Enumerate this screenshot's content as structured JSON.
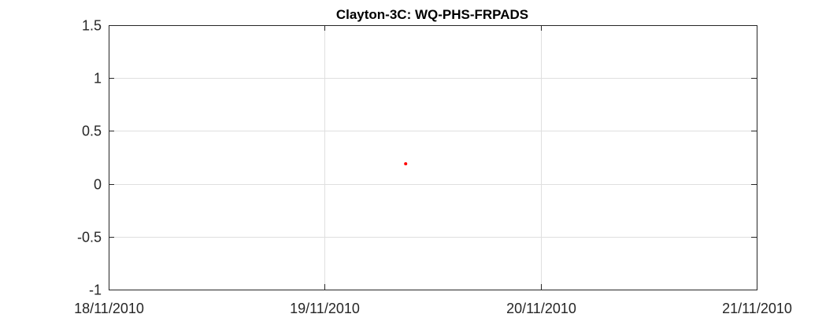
{
  "chart_data": {
    "type": "scatter",
    "title": "Clayton-3C: WQ-PHS-FRPADS",
    "xlabel": "",
    "ylabel": "",
    "x_axis_type": "date",
    "xlim": [
      "2010-11-18",
      "2010-11-21"
    ],
    "ylim": [
      -1,
      1.5
    ],
    "x_ticks": [
      {
        "value": "2010-11-18",
        "label": "18/11/2010"
      },
      {
        "value": "2010-11-19",
        "label": "19/11/2010"
      },
      {
        "value": "2010-11-20",
        "label": "20/11/2010"
      },
      {
        "value": "2010-11-21",
        "label": "21/11/2010"
      }
    ],
    "y_ticks": [
      {
        "value": -1,
        "label": "-1"
      },
      {
        "value": -0.5,
        "label": "-0.5"
      },
      {
        "value": 0,
        "label": "0"
      },
      {
        "value": 0.5,
        "label": "0.5"
      },
      {
        "value": 1,
        "label": "1"
      },
      {
        "value": 1.5,
        "label": "1.5"
      }
    ],
    "grid": true,
    "series": [
      {
        "color": "#ff0000",
        "marker": "point",
        "points": [
          {
            "x": "2010-11-19 09:00",
            "y": 0.19
          }
        ]
      }
    ]
  }
}
